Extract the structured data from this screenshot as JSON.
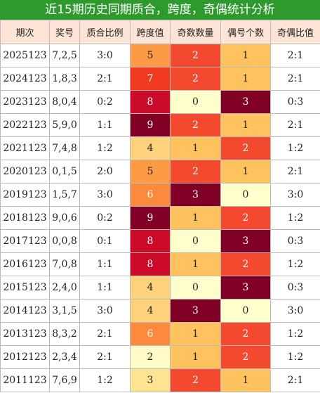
{
  "header": {
    "title": "近15期历史同期质合，跨度，奇偶统计分析"
  },
  "table": {
    "columns": [
      "期次",
      "奖号",
      "质合比例",
      "跨度值",
      "奇数数量",
      "偶号个数",
      "奇偶比值"
    ],
    "rows": [
      [
        "2025123",
        "7,2,5",
        "3:0",
        5,
        2,
        1,
        "2:1"
      ],
      [
        "2024123",
        "1,8,3",
        "2:1",
        7,
        2,
        1,
        "2:1"
      ],
      [
        "2023123",
        "8,0,4",
        "0:2",
        8,
        0,
        3,
        "0:3"
      ],
      [
        "2022123",
        "5,9,0",
        "1:1",
        9,
        2,
        1,
        "2:1"
      ],
      [
        "2021123",
        "7,4,8",
        "1:2",
        4,
        1,
        2,
        "1:2"
      ],
      [
        "2020123",
        "0,1,5",
        "2:0",
        5,
        2,
        1,
        "2:1"
      ],
      [
        "2019123",
        "1,5,7",
        "3:0",
        6,
        3,
        0,
        "3:0"
      ],
      [
        "2018123",
        "9,0,6",
        "0:2",
        9,
        1,
        2,
        "1:2"
      ],
      [
        "2017123",
        "0,0,8",
        "0:1",
        8,
        0,
        3,
        "0:3"
      ],
      [
        "2016123",
        "7,0,8",
        "1:1",
        8,
        1,
        2,
        "1:2"
      ],
      [
        "2015123",
        "2,4,0",
        "1:1",
        4,
        0,
        3,
        "0:3"
      ],
      [
        "2014123",
        "3,1,5",
        "3:0",
        4,
        3,
        0,
        "3:0"
      ],
      [
        "2013123",
        "8,3,2",
        "2:1",
        6,
        1,
        2,
        "1:2"
      ],
      [
        "2012123",
        "2,3,4",
        "2:1",
        2,
        1,
        2,
        "1:2"
      ],
      [
        "2011123",
        "7,6,9",
        "1:2",
        3,
        2,
        1,
        "2:1"
      ]
    ]
  }
}
